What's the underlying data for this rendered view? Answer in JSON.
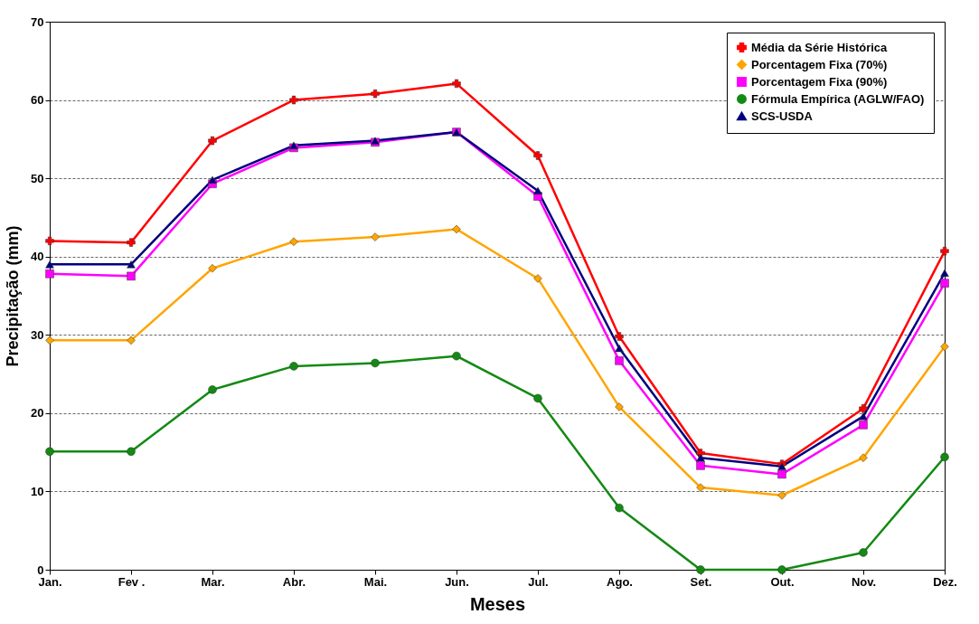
{
  "chart_data": {
    "type": "line",
    "xlabel": "Meses",
    "ylabel": "Precipitação (mm)",
    "categories": [
      "Jan.",
      "Fev .",
      "Mar.",
      "Abr.",
      "Mai.",
      "Jun.",
      "Jul.",
      "Ago.",
      "Set.",
      "Out.",
      "Nov.",
      "Dez."
    ],
    "ylim": [
      0,
      70
    ],
    "yticks": [
      0,
      10,
      20,
      30,
      40,
      50,
      60,
      70
    ],
    "grid": "y",
    "legend": "top right",
    "line_style": "solid",
    "series": [
      {
        "name": "Média da Série Histórica",
        "color": "#ff0000",
        "marker": "cross",
        "values": [
          42.0,
          41.8,
          54.8,
          60.0,
          60.8,
          62.1,
          52.9,
          29.8,
          14.9,
          13.5,
          20.6,
          40.7
        ]
      },
      {
        "name": "Porcentagem Fixa (70%)",
        "color": "#ffa500",
        "marker": "diamond",
        "values": [
          29.3,
          29.3,
          38.5,
          41.9,
          42.5,
          43.5,
          37.2,
          20.8,
          10.5,
          9.5,
          14.3,
          28.5
        ]
      },
      {
        "name": "Porcentagem Fixa (90%)",
        "color": "#ff00ff",
        "marker": "square",
        "values": [
          37.8,
          37.5,
          49.3,
          53.9,
          54.6,
          55.9,
          47.7,
          26.7,
          13.3,
          12.2,
          18.5,
          36.6
        ]
      },
      {
        "name": "Fórmula Empírica (AGLW/FAO)",
        "color": "#138a13",
        "marker": "circle",
        "values": [
          15.1,
          15.1,
          23.0,
          26.0,
          26.4,
          27.3,
          21.9,
          7.9,
          0,
          0,
          2.2,
          14.4
        ]
      },
      {
        "name": "SCS-USDA",
        "color": "#00007f",
        "marker": "triangle",
        "values": [
          39.0,
          39.0,
          49.8,
          54.2,
          54.8,
          55.9,
          48.4,
          28.3,
          14.3,
          13.2,
          19.6,
          37.9
        ]
      }
    ]
  }
}
